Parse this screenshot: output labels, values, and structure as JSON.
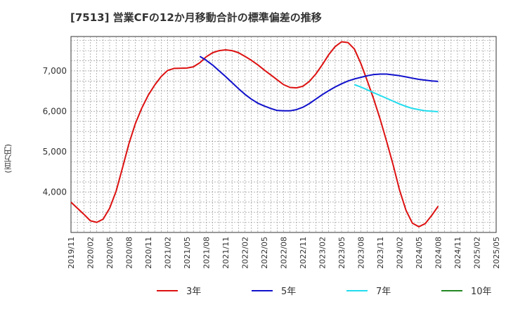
{
  "chart_data": {
    "type": "line",
    "title": "[7513]  営業CFの12か月移動合計の標準偏差の推移",
    "ylabel": "(百万円)",
    "xlabel": "",
    "x_labels": [
      "2019/11",
      "2020/02",
      "2020/05",
      "2020/08",
      "2020/11",
      "2021/02",
      "2021/05",
      "2021/08",
      "2021/11",
      "2022/02",
      "2022/05",
      "2022/08",
      "2022/11",
      "2023/02",
      "2023/05",
      "2023/08",
      "2023/11",
      "2024/02",
      "2024/05",
      "2024/08",
      "2024/11",
      "2025/02",
      "2025/05"
    ],
    "y_ticks": [
      4000,
      5000,
      6000,
      7000
    ],
    "y_tick_labels": [
      "4,000",
      "5,000",
      "6,000",
      "7,000"
    ],
    "ylim": [
      3000,
      7850
    ],
    "x_start": "2019/11",
    "x_end": "2025/05",
    "grid": true,
    "legend_position": "bottom",
    "series": [
      {
        "name": "3年",
        "color": "#dd1111",
        "points": [
          [
            "2019/11",
            3750
          ],
          [
            "2020/01",
            3450
          ],
          [
            "2020/02",
            3290
          ],
          [
            "2020/03",
            3250
          ],
          [
            "2020/04",
            3330
          ],
          [
            "2020/05",
            3600
          ],
          [
            "2020/06",
            4020
          ],
          [
            "2020/07",
            4600
          ],
          [
            "2020/08",
            5200
          ],
          [
            "2020/09",
            5700
          ],
          [
            "2020/10",
            6080
          ],
          [
            "2020/11",
            6400
          ],
          [
            "2020/12",
            6650
          ],
          [
            "2021/01",
            6860
          ],
          [
            "2021/02",
            7010
          ],
          [
            "2021/03",
            7060
          ],
          [
            "2021/05",
            7070
          ],
          [
            "2021/06",
            7100
          ],
          [
            "2021/07",
            7200
          ],
          [
            "2021/08",
            7350
          ],
          [
            "2021/09",
            7450
          ],
          [
            "2021/10",
            7500
          ],
          [
            "2021/11",
            7520
          ],
          [
            "2021/12",
            7500
          ],
          [
            "2022/01",
            7450
          ],
          [
            "2022/02",
            7360
          ],
          [
            "2022/03",
            7260
          ],
          [
            "2022/04",
            7150
          ],
          [
            "2022/05",
            7020
          ],
          [
            "2022/06",
            6900
          ],
          [
            "2022/07",
            6780
          ],
          [
            "2022/08",
            6660
          ],
          [
            "2022/09",
            6590
          ],
          [
            "2022/10",
            6580
          ],
          [
            "2022/11",
            6620
          ],
          [
            "2022/12",
            6740
          ],
          [
            "2023/01",
            6920
          ],
          [
            "2023/02",
            7150
          ],
          [
            "2023/03",
            7400
          ],
          [
            "2023/04",
            7600
          ],
          [
            "2023/05",
            7720
          ],
          [
            "2023/06",
            7700
          ],
          [
            "2023/07",
            7540
          ],
          [
            "2023/08",
            7180
          ],
          [
            "2023/09",
            6750
          ],
          [
            "2023/10",
            6300
          ],
          [
            "2023/11",
            5800
          ],
          [
            "2023/12",
            5250
          ],
          [
            "2024/01",
            4680
          ],
          [
            "2024/02",
            4050
          ],
          [
            "2024/03",
            3550
          ],
          [
            "2024/04",
            3230
          ],
          [
            "2024/05",
            3140
          ],
          [
            "2024/06",
            3220
          ],
          [
            "2024/07",
            3420
          ],
          [
            "2024/08",
            3650
          ]
        ]
      },
      {
        "name": "5年",
        "color": "#1111cc",
        "points": [
          [
            "2021/07",
            7360
          ],
          [
            "2021/08",
            7260
          ],
          [
            "2021/09",
            7140
          ],
          [
            "2021/10",
            7000
          ],
          [
            "2021/11",
            6860
          ],
          [
            "2021/12",
            6710
          ],
          [
            "2022/01",
            6560
          ],
          [
            "2022/02",
            6420
          ],
          [
            "2022/03",
            6300
          ],
          [
            "2022/04",
            6200
          ],
          [
            "2022/05",
            6130
          ],
          [
            "2022/06",
            6070
          ],
          [
            "2022/07",
            6020
          ],
          [
            "2022/08",
            6010
          ],
          [
            "2022/09",
            6010
          ],
          [
            "2022/10",
            6040
          ],
          [
            "2022/11",
            6100
          ],
          [
            "2022/12",
            6190
          ],
          [
            "2023/01",
            6300
          ],
          [
            "2023/02",
            6410
          ],
          [
            "2023/03",
            6510
          ],
          [
            "2023/04",
            6600
          ],
          [
            "2023/05",
            6680
          ],
          [
            "2023/06",
            6750
          ],
          [
            "2023/07",
            6800
          ],
          [
            "2023/08",
            6840
          ],
          [
            "2023/09",
            6880
          ],
          [
            "2023/10",
            6910
          ],
          [
            "2023/11",
            6920
          ],
          [
            "2023/12",
            6920
          ],
          [
            "2024/01",
            6900
          ],
          [
            "2024/02",
            6880
          ],
          [
            "2024/03",
            6850
          ],
          [
            "2024/04",
            6820
          ],
          [
            "2024/05",
            6790
          ],
          [
            "2024/06",
            6770
          ],
          [
            "2024/07",
            6750
          ],
          [
            "2024/08",
            6740
          ]
        ]
      },
      {
        "name": "7年",
        "color": "#22ddee",
        "points": [
          [
            "2023/07",
            6660
          ],
          [
            "2023/08",
            6600
          ],
          [
            "2023/09",
            6530
          ],
          [
            "2023/10",
            6460
          ],
          [
            "2023/11",
            6390
          ],
          [
            "2023/12",
            6320
          ],
          [
            "2024/01",
            6250
          ],
          [
            "2024/02",
            6180
          ],
          [
            "2024/03",
            6120
          ],
          [
            "2024/04",
            6070
          ],
          [
            "2024/05",
            6040
          ],
          [
            "2024/06",
            6010
          ],
          [
            "2024/07",
            6000
          ],
          [
            "2024/08",
            5990
          ]
        ]
      },
      {
        "name": "10年",
        "color": "#228822",
        "points": []
      }
    ]
  }
}
